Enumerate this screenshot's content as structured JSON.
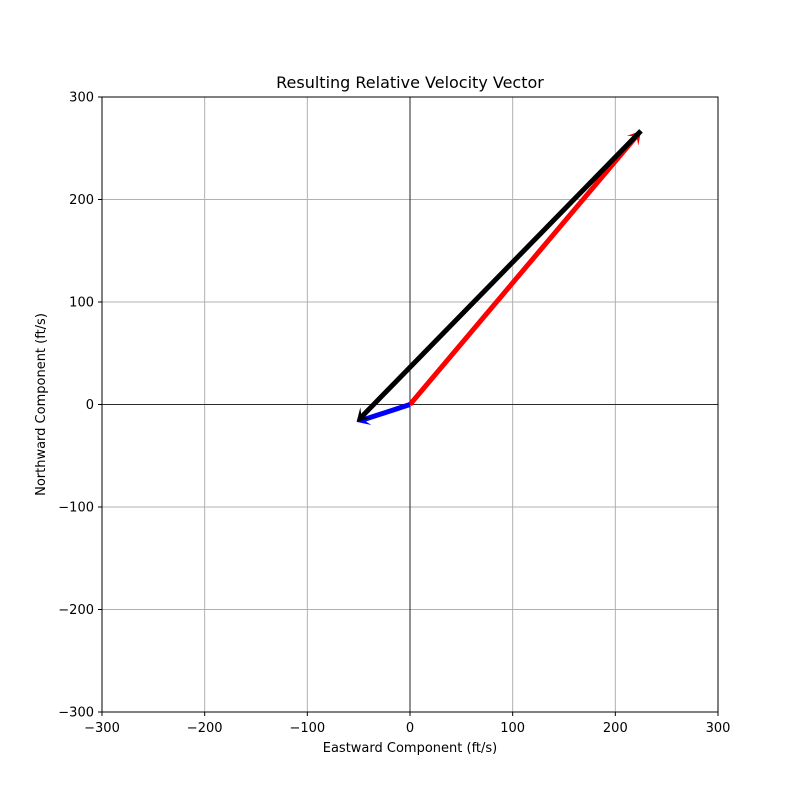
{
  "chart_data": {
    "type": "vector",
    "title": "Resulting Relative Velocity Vector",
    "xlabel": "Eastward Component (ft/s)",
    "ylabel": "Northward Component (ft/s)",
    "xlim": [
      -300,
      300
    ],
    "ylim": [
      -300,
      300
    ],
    "xticks": [
      -300,
      -200,
      -100,
      0,
      100,
      200,
      300
    ],
    "yticks": [
      -300,
      -200,
      -100,
      0,
      100,
      200,
      300
    ],
    "xtick_labels": [
      "−300",
      "−200",
      "−100",
      "0",
      "100",
      "200",
      "300"
    ],
    "ytick_labels": [
      "−300",
      "−200",
      "−100",
      "0",
      "100",
      "200",
      "300"
    ],
    "grid": true,
    "reference_lines": {
      "x": 0,
      "y": 0
    },
    "vectors": [
      {
        "color": "#ff0000",
        "start": [
          0,
          0
        ],
        "end": [
          225,
          267
        ]
      },
      {
        "color": "#0000ff",
        "start": [
          0,
          0
        ],
        "end": [
          -52,
          -17
        ]
      },
      {
        "color": "#000000",
        "start": [
          225,
          267
        ],
        "end": [
          -52,
          -17
        ]
      }
    ]
  }
}
